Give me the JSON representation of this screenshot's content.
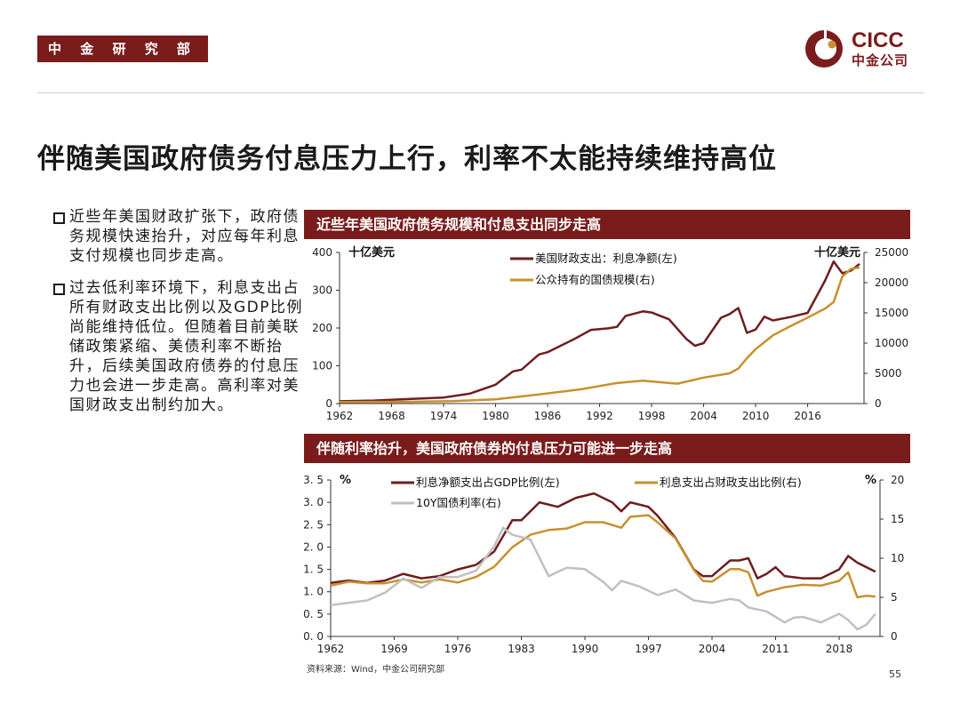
{
  "header": {
    "badge": "中 金 研 究 部"
  },
  "logo": {
    "brand": "CICC",
    "name": "中金公司"
  },
  "title": "伴随美国政府债务付息压力上行，利率不太能持续维持高位",
  "bullets": [
    "近些年美国财政扩张下，政府债务规模快速抬升，对应每年利息支付规模也同步走高。",
    "过去低利率环境下，利息支出占所有财政支出比例以及GDP比例尚能维持低位。但随着目前美联储政策紧缩、美债利率不断抬升，后续美国政府债券的付息压力也会进一步走高。高利率对美国财政支出制约加大。"
  ],
  "colors": {
    "brand": "#7a1c1c",
    "interest": "#6e1e1e",
    "debt": "#c8902e",
    "yield": "#c0c0c0",
    "axis": "#333333"
  },
  "chart_data": [
    {
      "type": "line",
      "title": "近些年美国政府债务规模和付息支出同步走高",
      "left_unit": "十亿美元",
      "right_unit": "十亿美元",
      "x_ticks": [
        "1962",
        "1968",
        "1974",
        "1980",
        "1986",
        "1992",
        "1998",
        "2004",
        "2010",
        "2016"
      ],
      "y_left": {
        "ticks": [
          "0",
          "100",
          "200",
          "300",
          "400"
        ],
        "range": [
          0,
          400
        ]
      },
      "y_right": {
        "ticks": [
          "0",
          "5000",
          "10000",
          "15000",
          "20000",
          "25000"
        ],
        "range": [
          0,
          25000
        ]
      },
      "series": [
        {
          "name": "美国财政支出：利息净额(左)",
          "axis": "left",
          "x": [
            1962,
            1966,
            1970,
            1974,
            1977,
            1980,
            1982,
            1983,
            1984,
            1985,
            1986,
            1989,
            1991,
            1993,
            1994,
            1995,
            1997,
            1998,
            2000,
            2002,
            2003,
            2004,
            2006,
            2007,
            2008,
            2009,
            2010,
            2011,
            2012,
            2014,
            2016,
            2018,
            2019,
            2020,
            2021,
            2022
          ],
          "y": [
            6,
            8,
            12,
            16,
            26,
            50,
            85,
            90,
            110,
            130,
            136,
            170,
            195,
            199,
            203,
            232,
            244,
            241,
            223,
            171,
            153,
            160,
            227,
            237,
            253,
            187,
            196,
            230,
            220,
            229,
            240,
            325,
            376,
            345,
            352,
            370
          ]
        },
        {
          "name": "公众持有的国债规模(右)",
          "axis": "right",
          "x": [
            1962,
            1970,
            1975,
            1980,
            1985,
            1990,
            1994,
            1997,
            2000,
            2001,
            2004,
            2007,
            2008,
            2009,
            2010,
            2012,
            2014,
            2016,
            2018,
            2019,
            2020,
            2021,
            2022
          ],
          "y": [
            250,
            300,
            400,
            700,
            1500,
            2400,
            3400,
            3800,
            3400,
            3300,
            4300,
            5000,
            5800,
            7500,
            9000,
            11300,
            12800,
            14200,
            15700,
            16800,
            21000,
            22300,
            22500
          ]
        }
      ]
    },
    {
      "type": "line",
      "title": "伴随利率抬升，美国政府债券的付息压力可能进一步走高",
      "left_unit": "%",
      "right_unit": "%",
      "x_ticks": [
        "1962",
        "1969",
        "1976",
        "1983",
        "1990",
        "1997",
        "2004",
        "2011",
        "2018"
      ],
      "y_left": {
        "ticks": [
          "0. 0",
          "0. 5",
          "1. 0",
          "1. 5",
          "2. 0",
          "2. 5",
          "3. 0",
          "3. 5"
        ],
        "range": [
          0,
          3.5
        ]
      },
      "y_right": {
        "ticks": [
          "0",
          "5",
          "10",
          "15",
          "20"
        ],
        "range": [
          0,
          20
        ]
      },
      "series": [
        {
          "name": "利息净额支出占GDP比例(左)",
          "axis": "left",
          "x": [
            1962,
            1964,
            1966,
            1968,
            1970,
            1972,
            1974,
            1976,
            1978,
            1980,
            1982,
            1983,
            1985,
            1987,
            1989,
            1990,
            1991,
            1993,
            1994,
            1995,
            1997,
            1998,
            2000,
            2002,
            2003,
            2004,
            2006,
            2007,
            2008,
            2009,
            2010,
            2011,
            2012,
            2014,
            2016,
            2018,
            2019,
            2020,
            2021,
            2022
          ],
          "y": [
            1.2,
            1.25,
            1.2,
            1.25,
            1.4,
            1.3,
            1.35,
            1.5,
            1.6,
            1.9,
            2.6,
            2.6,
            3.0,
            2.9,
            3.1,
            3.15,
            3.2,
            3.0,
            2.8,
            3.0,
            2.9,
            2.7,
            2.2,
            1.5,
            1.35,
            1.35,
            1.7,
            1.7,
            1.75,
            1.3,
            1.4,
            1.55,
            1.35,
            1.3,
            1.3,
            1.5,
            1.8,
            1.65,
            1.55,
            1.45
          ]
        },
        {
          "name": "利息支出占财政支出比例(右)",
          "axis": "right",
          "x": [
            1962,
            1964,
            1966,
            1968,
            1970,
            1972,
            1974,
            1976,
            1978,
            1980,
            1982,
            1984,
            1986,
            1988,
            1990,
            1992,
            1994,
            1995,
            1997,
            1998,
            2000,
            2002,
            2003,
            2004,
            2006,
            2007,
            2008,
            2009,
            2010,
            2012,
            2014,
            2016,
            2018,
            2019,
            2020,
            2021,
            2022
          ],
          "y": [
            6.5,
            7,
            6.8,
            6.8,
            7.3,
            6.9,
            7.3,
            6.9,
            7.6,
            8.9,
            11.4,
            13,
            13.6,
            13.8,
            14.6,
            14.6,
            13.9,
            15.3,
            15.5,
            14.6,
            12.5,
            8.5,
            7.1,
            7.0,
            8.6,
            8.6,
            8.2,
            5.2,
            5.7,
            6.3,
            6.6,
            6.5,
            7.1,
            8.2,
            5.0,
            5.2,
            5.1
          ]
        },
        {
          "name": "10Y国债利率(右)",
          "axis": "right",
          "x": [
            1962,
            1966,
            1968,
            1970,
            1972,
            1974,
            1976,
            1978,
            1980,
            1981,
            1982,
            1984,
            1986,
            1988,
            1990,
            1992,
            1993,
            1994,
            1996,
            1998,
            2000,
            2002,
            2004,
            2006,
            2007,
            2008,
            2010,
            2012,
            2013,
            2014,
            2016,
            2018,
            2019,
            2020,
            2021,
            2022
          ],
          "y": [
            4.0,
            4.6,
            5.6,
            7.4,
            6.2,
            7.6,
            7.6,
            8.4,
            11.5,
            13.9,
            13.0,
            12.4,
            7.7,
            8.8,
            8.6,
            7.0,
            5.9,
            7.1,
            6.4,
            5.3,
            6.0,
            4.6,
            4.3,
            4.8,
            4.6,
            3.7,
            3.2,
            1.8,
            2.4,
            2.5,
            1.8,
            2.9,
            2.1,
            0.9,
            1.5,
            2.9
          ]
        }
      ]
    }
  ],
  "footer": {
    "source": "资料来源：Wind，中金公司研究部",
    "page": "55"
  }
}
